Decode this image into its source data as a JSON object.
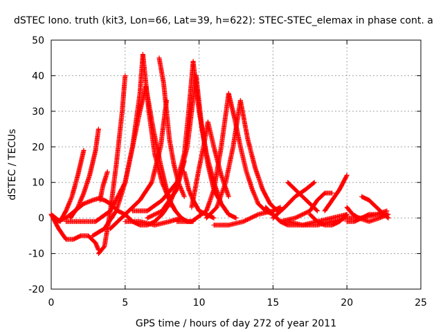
{
  "chart_data": {
    "type": "scatter",
    "title": "dSTEC Iono. truth (kit3, Lon=66, Lat=39, h=622): STEC-STEC_elemax in phase cont. a",
    "xlabel": "GPS time / hours of day 272 of year 2011",
    "ylabel": "dSTEC  / TECUs",
    "xlim": [
      0,
      25
    ],
    "ylim": [
      -20,
      50
    ],
    "xticks": [
      "0",
      "5",
      "10",
      "15",
      "20",
      "25"
    ],
    "yticks": [
      "-20",
      "-10",
      "0",
      "10",
      "20",
      "30",
      "40",
      "50"
    ],
    "grid": true,
    "marker": "+",
    "series_color": "#ff0000",
    "series": [
      {
        "x": [
          0.0,
          0.3,
          0.6,
          1.0,
          1.4,
          1.8,
          2.2
        ],
        "y": [
          1,
          0,
          -1,
          2,
          6,
          12,
          19
        ]
      },
      {
        "x": [
          0.0,
          0.5,
          1.0,
          1.5,
          2.0,
          2.5,
          3.0,
          3.2
        ],
        "y": [
          1,
          -3,
          -6,
          -6,
          -5,
          -5,
          -7,
          -9
        ]
      },
      {
        "x": [
          1.3,
          1.8,
          2.2,
          2.6,
          3.0,
          3.2
        ],
        "y": [
          0,
          3,
          7,
          12,
          19,
          25
        ]
      },
      {
        "x": [
          0.4,
          1.0,
          1.6,
          2.2,
          2.8,
          3.2,
          3.6,
          4.0,
          4.5,
          5.0,
          5.5,
          6.0,
          6.5,
          7.0
        ],
        "y": [
          -1,
          0,
          2,
          4,
          5,
          5.5,
          5,
          4,
          2,
          1,
          -1,
          -2,
          -2,
          -1
        ]
      },
      {
        "x": [
          3.2,
          3.6,
          4.0,
          4.4,
          4.8,
          5.0
        ],
        "y": [
          -10,
          -8,
          2,
          15,
          30,
          40
        ]
      },
      {
        "x": [
          3.3,
          3.5,
          3.8
        ],
        "y": [
          5,
          9,
          13
        ]
      },
      {
        "x": [
          1.0,
          2.0,
          3.0,
          4.0,
          5.0,
          5.5,
          6.0,
          6.2
        ],
        "y": [
          -1,
          -1,
          -1,
          2,
          10,
          20,
          35,
          46
        ]
      },
      {
        "x": [
          6.2,
          6.6,
          7.0,
          7.5,
          8.0,
          8.4,
          8.8
        ],
        "y": [
          46,
          30,
          18,
          10,
          5,
          2,
          0
        ]
      },
      {
        "x": [
          2.8,
          3.6,
          4.4,
          5.0,
          5.5,
          6.0,
          6.4
        ],
        "y": [
          -5,
          -3,
          2,
          10,
          20,
          30,
          37
        ]
      },
      {
        "x": [
          6.4,
          6.9,
          7.4,
          7.8,
          8.2
        ],
        "y": [
          37,
          25,
          15,
          8,
          3
        ]
      },
      {
        "x": [
          4.0,
          5.0,
          6.0,
          6.8,
          7.4,
          7.8
        ],
        "y": [
          -3,
          1,
          5,
          10,
          20,
          33
        ]
      },
      {
        "x": [
          7.3,
          7.6,
          7.8,
          8.0,
          8.3,
          8.6,
          9.0
        ],
        "y": [
          45,
          38,
          30,
          22,
          15,
          10,
          6
        ]
      },
      {
        "x": [
          5.5,
          6.5,
          7.5,
          8.5,
          9.0,
          9.3,
          9.6
        ],
        "y": [
          2,
          2,
          5,
          10,
          18,
          30,
          44
        ]
      },
      {
        "x": [
          9.6,
          10.0,
          10.5,
          11.0,
          11.5,
          12.0
        ],
        "y": [
          44,
          30,
          18,
          10,
          4,
          1
        ]
      },
      {
        "x": [
          6.5,
          7.5,
          8.5,
          9.2,
          9.8
        ],
        "y": [
          0,
          2,
          8,
          20,
          40
        ]
      },
      {
        "x": [
          9.8,
          10.2,
          10.6,
          11.0,
          11.5,
          12.0,
          12.5
        ],
        "y": [
          40,
          25,
          15,
          8,
          4,
          1,
          0
        ]
      },
      {
        "x": [
          7.0,
          7.5,
          8.0,
          8.5,
          8.8,
          9.0
        ],
        "y": [
          -1,
          1,
          4,
          9,
          13,
          16
        ]
      },
      {
        "x": [
          9.0,
          9.3,
          9.6,
          10.0,
          10.5,
          11.0
        ],
        "y": [
          13,
          8,
          5,
          2,
          1,
          0
        ]
      },
      {
        "x": [
          5.0,
          6.0,
          7.0,
          8.0,
          8.8,
          9.2,
          9.6
        ],
        "y": [
          -1,
          -1,
          -2,
          -1,
          0,
          -1,
          -1
        ]
      },
      {
        "x": [
          9.5,
          10.0,
          10.3,
          10.6,
          11.0,
          11.5,
          12.0
        ],
        "y": [
          3,
          14,
          20,
          27,
          20,
          12,
          6
        ]
      },
      {
        "x": [
          8.5,
          9.5,
          10.5,
          11.0,
          11.5,
          12.0
        ],
        "y": [
          -1,
          -1,
          2,
          8,
          20,
          35
        ]
      },
      {
        "x": [
          12.0,
          12.4,
          12.8,
          13.2,
          13.6,
          14.0,
          14.5,
          15.0
        ],
        "y": [
          35,
          28,
          20,
          13,
          8,
          4,
          2,
          1
        ]
      },
      {
        "x": [
          10.5,
          11.2,
          11.8,
          12.3,
          12.8
        ],
        "y": [
          0,
          3,
          10,
          20,
          33
        ]
      },
      {
        "x": [
          12.8,
          13.3,
          13.8,
          14.3,
          14.8,
          15.3
        ],
        "y": [
          33,
          22,
          14,
          8,
          4,
          2
        ]
      },
      {
        "x": [
          11.0,
          12.0,
          13.0,
          14.0,
          15.0,
          15.5
        ],
        "y": [
          -2,
          -2,
          -1,
          1,
          2,
          3
        ]
      },
      {
        "x": [
          14.5,
          15.0,
          15.5,
          16.0,
          17.0,
          18.0,
          19.0,
          20.0
        ],
        "y": [
          3,
          1,
          -1,
          -2,
          -2,
          -1,
          0,
          1
        ]
      },
      {
        "x": [
          15.0,
          15.8,
          16.5,
          17.2,
          17.8
        ],
        "y": [
          0,
          3,
          6,
          8,
          10
        ]
      },
      {
        "x": [
          16.0,
          16.5,
          17.0,
          17.5,
          18.0
        ],
        "y": [
          10,
          8,
          6,
          4,
          2
        ]
      },
      {
        "x": [
          15.5,
          16.5,
          17.5,
          18.0,
          18.5,
          19.0
        ],
        "y": [
          -1,
          0,
          2,
          5,
          7,
          7
        ]
      },
      {
        "x": [
          17.5,
          18.0,
          18.5,
          19.0,
          19.5,
          20.0
        ],
        "y": [
          1,
          -1,
          -2,
          -2,
          -1,
          1
        ]
      },
      {
        "x": [
          18.5,
          19.0,
          19.5,
          20.0
        ],
        "y": [
          2,
          5,
          8,
          12
        ]
      },
      {
        "x": [
          16.0,
          17.0,
          18.0,
          19.0,
          20.0,
          21.0,
          22.0,
          22.7
        ],
        "y": [
          -1,
          -2,
          -2,
          -1,
          0,
          0,
          1,
          1
        ]
      },
      {
        "x": [
          21.0,
          21.5,
          22.0,
          22.5,
          22.8
        ],
        "y": [
          6,
          5,
          3,
          1,
          0
        ]
      },
      {
        "x": [
          20.0,
          20.5,
          21.0,
          21.5,
          22.0,
          22.7
        ],
        "y": [
          -1,
          -1,
          0,
          1,
          1,
          2
        ]
      },
      {
        "x": [
          20.0,
          20.4,
          20.8,
          21.5,
          22.2,
          22.8
        ],
        "y": [
          3,
          1,
          0,
          -1,
          0,
          1
        ]
      }
    ]
  }
}
